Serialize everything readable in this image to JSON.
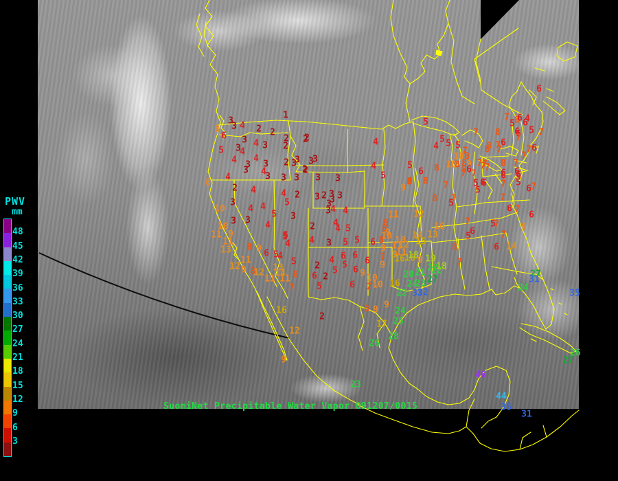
{
  "legend": {
    "title": "PWV",
    "unit": "mm",
    "text_color": "#00e0e0",
    "tick_labels": [
      "48",
      "45",
      "42",
      "39",
      "36",
      "33",
      "30",
      "27",
      "24",
      "21",
      "18",
      "15",
      "12",
      "9",
      "6",
      "3"
    ],
    "segment_colors": [
      "#880088",
      "#8822dd",
      "#8888cc",
      "#00e8e8",
      "#00c8e0",
      "#3399ee",
      "#2070cc",
      "#007700",
      "#00aa00",
      "#55cc00",
      "#e8e800",
      "#e8c800",
      "#b88800",
      "#ee7700",
      "#ee4400",
      "#cc1100",
      "#881111"
    ]
  },
  "caption": {
    "text": "SuomiNet Precipitable Water Vapor 091207/0015",
    "color": "#22dd44"
  },
  "map": {
    "border_color": "#ffff00"
  },
  "palette": {
    "p1": "#aa1111",
    "p2": "#dd2222",
    "p3": "#ee5511",
    "p4": "#ee8822",
    "p5": "#e09220",
    "p6": "#ccaa00",
    "p7": "#aacc22",
    "p8": "#33cc44",
    "p9": "#11aa33",
    "p10": "#3366dd",
    "p11": "#33bbee",
    "p12": "#9933ee"
  },
  "stations_format": [
    "value",
    "x",
    "y",
    "color_key"
  ],
  "stations": [
    [
      "1",
      416,
      168,
      "p1"
    ],
    [
      "3",
      336,
      176,
      "p1"
    ],
    [
      "3",
      341,
      184,
      "p1"
    ],
    [
      "8",
      316,
      188,
      "p4"
    ],
    [
      "4",
      353,
      183,
      "p2"
    ],
    [
      "6",
      326,
      198,
      "p2"
    ],
    [
      "2",
      377,
      188,
      "p1"
    ],
    [
      "2",
      397,
      193,
      "p1"
    ],
    [
      "2",
      417,
      202,
      "p1"
    ],
    [
      "2",
      447,
      201,
      "p1"
    ],
    [
      "3",
      356,
      204,
      "p1"
    ],
    [
      "4",
      373,
      209,
      "p2"
    ],
    [
      "3",
      386,
      212,
      "p1"
    ],
    [
      "2",
      416,
      213,
      "p1"
    ],
    [
      "5",
      322,
      219,
      "p2"
    ],
    [
      "3",
      347,
      216,
      "p1"
    ],
    [
      "4",
      353,
      221,
      "p2"
    ],
    [
      "4",
      341,
      233,
      "p2"
    ],
    [
      "4",
      373,
      231,
      "p2"
    ],
    [
      "3",
      387,
      239,
      "p1"
    ],
    [
      "2",
      417,
      237,
      "p1"
    ],
    [
      "3",
      428,
      238,
      "p1"
    ],
    [
      "3",
      361,
      240,
      "p1"
    ],
    [
      "3",
      358,
      248,
      "p1"
    ],
    [
      "2",
      445,
      248,
      "p1"
    ],
    [
      "4",
      332,
      258,
      "p2"
    ],
    [
      "4",
      384,
      250,
      "p2"
    ],
    [
      "3",
      390,
      257,
      "p1"
    ],
    [
      "3",
      413,
      259,
      "p1"
    ],
    [
      "3",
      432,
      259,
      "p1"
    ],
    [
      "8",
      303,
      266,
      "p4"
    ],
    [
      "2",
      342,
      274,
      "p1"
    ],
    [
      "4",
      369,
      277,
      "p2"
    ],
    [
      "2",
      445,
      203,
      "p1"
    ],
    [
      "4",
      547,
      207,
      "p2"
    ],
    [
      "5",
      620,
      178,
      "p2"
    ],
    [
      "3",
      433,
      233,
      "p1"
    ],
    [
      "3",
      453,
      235,
      "p1"
    ],
    [
      "3",
      459,
      232,
      "p1"
    ],
    [
      "2",
      444,
      247,
      "p1"
    ],
    [
      "4",
      544,
      242,
      "p2"
    ],
    [
      "5",
      597,
      241,
      "p2"
    ],
    [
      "2",
      433,
      284,
      "p1"
    ],
    [
      "3",
      463,
      259,
      "p1"
    ],
    [
      "3",
      492,
      260,
      "p1"
    ],
    [
      "5",
      558,
      256,
      "p2"
    ],
    [
      "8",
      597,
      264,
      "p3"
    ],
    [
      "9",
      587,
      274,
      "p4"
    ],
    [
      "3",
      462,
      287,
      "p1"
    ],
    [
      "2",
      472,
      285,
      "p1"
    ],
    [
      "3",
      483,
      283,
      "p1"
    ],
    [
      "3",
      495,
      285,
      "p1"
    ],
    [
      "3",
      484,
      291,
      "p1"
    ],
    [
      "3",
      479,
      297,
      "p1"
    ],
    [
      "4",
      485,
      305,
      "p2"
    ],
    [
      "3",
      478,
      307,
      "p1"
    ],
    [
      "4",
      503,
      307,
      "p2"
    ],
    [
      "3",
      339,
      295,
      "p1"
    ],
    [
      "10",
      320,
      304,
      "p4"
    ],
    [
      "4",
      365,
      304,
      "p2"
    ],
    [
      "4",
      383,
      301,
      "p2"
    ],
    [
      "4",
      413,
      282,
      "p2"
    ],
    [
      "5",
      418,
      295,
      "p2"
    ],
    [
      "5",
      399,
      312,
      "p2"
    ],
    [
      "3",
      427,
      315,
      "p1"
    ],
    [
      "3",
      340,
      322,
      "p1"
    ],
    [
      "3",
      361,
      321,
      "p1"
    ],
    [
      "10",
      325,
      330,
      "p4"
    ],
    [
      "4",
      390,
      328,
      "p2"
    ],
    [
      "9",
      336,
      341,
      "p4"
    ],
    [
      "11",
      315,
      342,
      "p4"
    ],
    [
      "5",
      416,
      343,
      "p2"
    ],
    [
      "2",
      455,
      330,
      "p1"
    ],
    [
      "11",
      332,
      352,
      "p4"
    ],
    [
      "13",
      329,
      364,
      "p5"
    ],
    [
      "8",
      363,
      360,
      "p3"
    ],
    [
      "9",
      377,
      362,
      "p4"
    ],
    [
      "6",
      388,
      369,
      "p2"
    ],
    [
      "5",
      402,
      371,
      "p2"
    ],
    [
      "4",
      408,
      373,
      "p2"
    ],
    [
      "11",
      358,
      379,
      "p4"
    ],
    [
      "5",
      428,
      381,
      "p2"
    ],
    [
      "12",
      342,
      388,
      "p5"
    ],
    [
      "9",
      355,
      393,
      "p4"
    ],
    [
      "8",
      368,
      395,
      "p3"
    ],
    [
      "12",
      377,
      397,
      "p5"
    ],
    [
      "13",
      405,
      390,
      "p5"
    ],
    [
      "14",
      408,
      398,
      "p5"
    ],
    [
      "8",
      431,
      400,
      "p3"
    ],
    [
      "11",
      393,
      406,
      "p4"
    ],
    [
      "11",
      415,
      406,
      "p4"
    ],
    [
      "7",
      425,
      419,
      "p3"
    ],
    [
      "16",
      410,
      452,
      "p6"
    ],
    [
      "12",
      429,
      482,
      "p5"
    ],
    [
      "9",
      413,
      524,
      "p4"
    ],
    [
      "5",
      415,
      345,
      "p2"
    ],
    [
      "4",
      419,
      355,
      "p2"
    ],
    [
      "4",
      489,
      325,
      "p2"
    ],
    [
      "4",
      492,
      333,
      "p2"
    ],
    [
      "5",
      507,
      333,
      "p2"
    ],
    [
      "3",
      479,
      354,
      "p1"
    ],
    [
      "5",
      503,
      353,
      "p2"
    ],
    [
      "5",
      520,
      350,
      "p2"
    ],
    [
      "4",
      454,
      350,
      "p2"
    ],
    [
      "6",
      500,
      373,
      "p2"
    ],
    [
      "6",
      517,
      372,
      "p2"
    ],
    [
      "4",
      483,
      379,
      "p2"
    ],
    [
      "2",
      462,
      387,
      "p1"
    ],
    [
      "5",
      502,
      386,
      "p2"
    ],
    [
      "5",
      488,
      394,
      "p2"
    ],
    [
      "6",
      458,
      402,
      "p2"
    ],
    [
      "2",
      474,
      403,
      "p1"
    ],
    [
      "6",
      518,
      393,
      "p2"
    ],
    [
      "5",
      465,
      417,
      "p2"
    ],
    [
      "6",
      513,
      415,
      "p2"
    ],
    [
      "2",
      469,
      461,
      "p1"
    ],
    [
      "11",
      573,
      313,
      "p4"
    ],
    [
      "12",
      610,
      312,
      "p5"
    ],
    [
      "8",
      562,
      325,
      "p3"
    ],
    [
      "8",
      560,
      333,
      "p3"
    ],
    [
      "9",
      565,
      339,
      "p4"
    ],
    [
      "10",
      563,
      344,
      "p4"
    ],
    [
      "10",
      583,
      350,
      "p4"
    ],
    [
      "10",
      640,
      330,
      "p4"
    ],
    [
      "14",
      608,
      343,
      "p5"
    ],
    [
      "13",
      630,
      342,
      "p5"
    ],
    [
      "15",
      613,
      352,
      "p6"
    ],
    [
      "6",
      543,
      353,
      "p2"
    ],
    [
      "8",
      555,
      350,
      "p3"
    ],
    [
      "9",
      558,
      362,
      "p4"
    ],
    [
      "11",
      578,
      358,
      "p4"
    ],
    [
      "12",
      588,
      357,
      "p5"
    ],
    [
      "7",
      557,
      375,
      "p3"
    ],
    [
      "9",
      575,
      371,
      "p4"
    ],
    [
      "11",
      585,
      368,
      "p4"
    ],
    [
      "16",
      582,
      377,
      "p6"
    ],
    [
      "16",
      597,
      376,
      "p6"
    ],
    [
      "18",
      602,
      372,
      "p7"
    ],
    [
      "9",
      612,
      379,
      "p4"
    ],
    [
      "19",
      627,
      377,
      "p7"
    ],
    [
      "6",
      535,
      380,
      "p2"
    ],
    [
      "9",
      557,
      386,
      "p4"
    ],
    [
      "9",
      528,
      398,
      "p4"
    ],
    [
      "10",
      542,
      405,
      "p4"
    ],
    [
      "20",
      595,
      400,
      "p8"
    ],
    [
      "21",
      612,
      397,
      "p8"
    ],
    [
      "22",
      630,
      390,
      "p8"
    ],
    [
      "22",
      636,
      394,
      "p8"
    ],
    [
      "18",
      643,
      388,
      "p7"
    ],
    [
      "7",
      537,
      418,
      "p3"
    ],
    [
      "10",
      550,
      415,
      "p4"
    ],
    [
      "16",
      575,
      413,
      "p6"
    ],
    [
      "24",
      600,
      414,
      "p8"
    ],
    [
      "23",
      612,
      413,
      "p8"
    ],
    [
      "27",
      630,
      407,
      "p9"
    ],
    [
      "22",
      585,
      427,
      "p8"
    ],
    [
      "33",
      608,
      427,
      "p10"
    ],
    [
      "32",
      616,
      426,
      "p10"
    ],
    [
      "8",
      534,
      450,
      "p3"
    ],
    [
      "9",
      547,
      451,
      "p4"
    ],
    [
      "9",
      563,
      444,
      "p4"
    ],
    [
      "24",
      583,
      453,
      "p8"
    ],
    [
      "25",
      580,
      468,
      "p8"
    ],
    [
      "17",
      556,
      472,
      "p6"
    ],
    [
      "28",
      573,
      490,
      "p8"
    ],
    [
      "26",
      545,
      500,
      "p8"
    ],
    [
      "23",
      518,
      560,
      "p8"
    ],
    [
      "46",
      700,
      546,
      "p12"
    ],
    [
      "44",
      730,
      577,
      "p11"
    ],
    [
      "36",
      737,
      593,
      "p10"
    ],
    [
      "31",
      767,
      603,
      "p10"
    ],
    [
      "5",
      644,
      203,
      "p2"
    ],
    [
      "4",
      635,
      213,
      "p2"
    ],
    [
      "5",
      667,
      212,
      "p2"
    ],
    [
      "5",
      653,
      209,
      "p2"
    ],
    [
      "7",
      693,
      193,
      "p3"
    ],
    [
      "8",
      725,
      193,
      "p3"
    ],
    [
      "7",
      738,
      171,
      "p3"
    ],
    [
      "5",
      746,
      180,
      "p2"
    ],
    [
      "8",
      753,
      175,
      "p3"
    ],
    [
      "6",
      755,
      195,
      "p2"
    ],
    [
      "6",
      733,
      208,
      "p2"
    ],
    [
      "7",
      725,
      212,
      "p3"
    ],
    [
      "7",
      727,
      218,
      "p3"
    ],
    [
      "8",
      712,
      213,
      "p3"
    ],
    [
      "7",
      677,
      220,
      "p3"
    ],
    [
      "10",
      668,
      228,
      "p4"
    ],
    [
      "8",
      680,
      228,
      "p3"
    ],
    [
      "8",
      676,
      238,
      "p3"
    ],
    [
      "9",
      683,
      239,
      "p4"
    ],
    [
      "8",
      676,
      247,
      "p3"
    ],
    [
      "6",
      683,
      247,
      "p2"
    ],
    [
      "10",
      657,
      240,
      "p4"
    ],
    [
      "8",
      666,
      240,
      "p3"
    ],
    [
      "7",
      698,
      238,
      "p3"
    ],
    [
      "7",
      706,
      239,
      "p3"
    ],
    [
      "8",
      636,
      245,
      "p3"
    ],
    [
      "6",
      613,
      250,
      "p2"
    ],
    [
      "7",
      675,
      253,
      "p3"
    ],
    [
      "7",
      690,
      253,
      "p3"
    ],
    [
      "8",
      733,
      238,
      "p3"
    ],
    [
      "7",
      751,
      238,
      "p3"
    ],
    [
      "6",
      733,
      252,
      "p2"
    ],
    [
      "6",
      753,
      250,
      "p2"
    ],
    [
      "5",
      755,
      258,
      "p2"
    ],
    [
      "8",
      596,
      265,
      "p3"
    ],
    [
      "8",
      620,
      264,
      "p3"
    ],
    [
      "7",
      649,
      270,
      "p3"
    ],
    [
      "5",
      693,
      267,
      "p2"
    ],
    [
      "6",
      703,
      266,
      "p2"
    ],
    [
      "5",
      696,
      277,
      "p2"
    ],
    [
      "7",
      733,
      268,
      "p3"
    ],
    [
      "8",
      633,
      289,
      "p3"
    ],
    [
      "7",
      661,
      289,
      "p3"
    ],
    [
      "5",
      657,
      296,
      "p2"
    ],
    [
      "6",
      757,
      172,
      "p2"
    ],
    [
      "4",
      768,
      173,
      "p2"
    ],
    [
      "6",
      765,
      179,
      "p2"
    ],
    [
      "6",
      785,
      130,
      "p2"
    ],
    [
      "6",
      753,
      192,
      "p2"
    ],
    [
      "5",
      774,
      190,
      "p2"
    ],
    [
      "7",
      755,
      201,
      "p3"
    ],
    [
      "7",
      788,
      193,
      "p3"
    ],
    [
      "8",
      709,
      218,
      "p3"
    ],
    [
      "7",
      770,
      218,
      "p3"
    ],
    [
      "6",
      778,
      216,
      "p2"
    ],
    [
      "7",
      763,
      227,
      "p3"
    ],
    [
      "7",
      703,
      242,
      "p3"
    ],
    [
      "7",
      710,
      244,
      "p3"
    ],
    [
      "6",
      733,
      256,
      "p2"
    ],
    [
      "6",
      755,
      255,
      "p2"
    ],
    [
      "6",
      705,
      267,
      "p2"
    ],
    [
      "5",
      755,
      266,
      "p2"
    ],
    [
      "6",
      770,
      275,
      "p2"
    ],
    [
      "7",
      777,
      272,
      "p3"
    ],
    [
      "7",
      732,
      288,
      "p3"
    ],
    [
      "6",
      742,
      304,
      "p2"
    ],
    [
      "7",
      753,
      305,
      "p3"
    ],
    [
      "6",
      774,
      313,
      "p2"
    ],
    [
      "7",
      681,
      323,
      "p3"
    ],
    [
      "5",
      718,
      326,
      "p2"
    ],
    [
      "7",
      723,
      327,
      "p3"
    ],
    [
      "9",
      763,
      331,
      "p4"
    ],
    [
      "6",
      688,
      337,
      "p2"
    ],
    [
      "5",
      682,
      344,
      "p2"
    ],
    [
      "7",
      733,
      342,
      "p3"
    ],
    [
      "8",
      662,
      360,
      "p3"
    ],
    [
      "6",
      723,
      360,
      "p2"
    ],
    [
      "14",
      745,
      359,
      "p5"
    ],
    [
      "7",
      669,
      382,
      "p3"
    ],
    [
      "27",
      780,
      399,
      "p9"
    ],
    [
      "31",
      778,
      407,
      "p10"
    ],
    [
      "24",
      762,
      419,
      "p8"
    ],
    [
      "35",
      837,
      427,
      "p10"
    ],
    [
      "26",
      838,
      514,
      "p8"
    ],
    [
      "27",
      827,
      525,
      "p9"
    ]
  ]
}
